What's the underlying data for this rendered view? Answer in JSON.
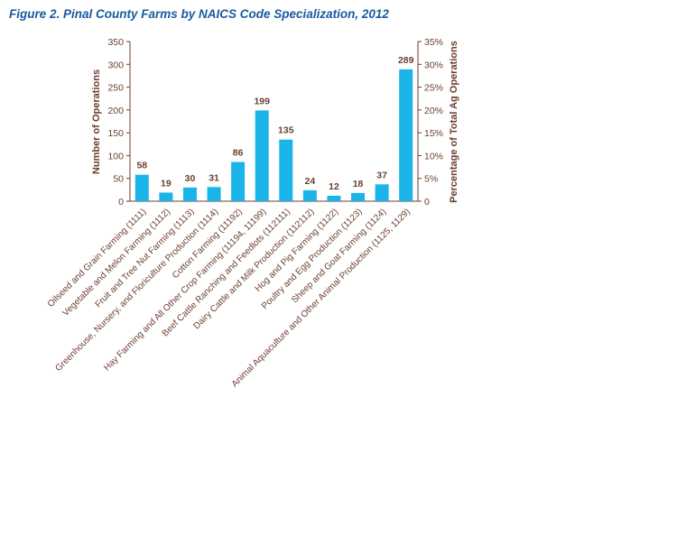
{
  "chart_data": {
    "type": "bar",
    "title": "Figure 2. Pinal County Farms by NAICS Code Specialization, 2012",
    "ylabel": "Number of Operations",
    "y2label": "Percentage of Total Ag Operations",
    "ylim": [
      0,
      350
    ],
    "yticks": [
      "0",
      "50",
      "100",
      "150",
      "200",
      "250",
      "300",
      "350"
    ],
    "y2ticks": [
      "0",
      "5%",
      "10%",
      "15%",
      "20%",
      "25%",
      "30%",
      "35%"
    ],
    "categories": [
      "Oilseed and Grain Farming (1111)",
      "Vegetable and Melon Farming (1112)",
      "Fruit and Tree Nut Farming (1113)",
      "Greenhouse, Nursery, and Floriculture Production (1114)",
      "Cotton Farming (11192)",
      "Hay Farming and All Other Crop Farming (11194, 11199)",
      "Beef Cattle Ranching and Feedlots (112111)",
      "Dairy Cattle and Milk Production (112112)",
      "Hog and Pig Farming (1122)",
      "Poultry and Egg Production (1123)",
      "Sheep and Goat Farming (1124)",
      "Animal Aquaculture and Other Animal Production (1125, 1129)"
    ],
    "values": [
      58,
      19,
      30,
      31,
      86,
      199,
      135,
      24,
      12,
      18,
      37,
      289
    ],
    "bar_color": "#1bb4e9",
    "text_color": "#6b3e2e"
  }
}
